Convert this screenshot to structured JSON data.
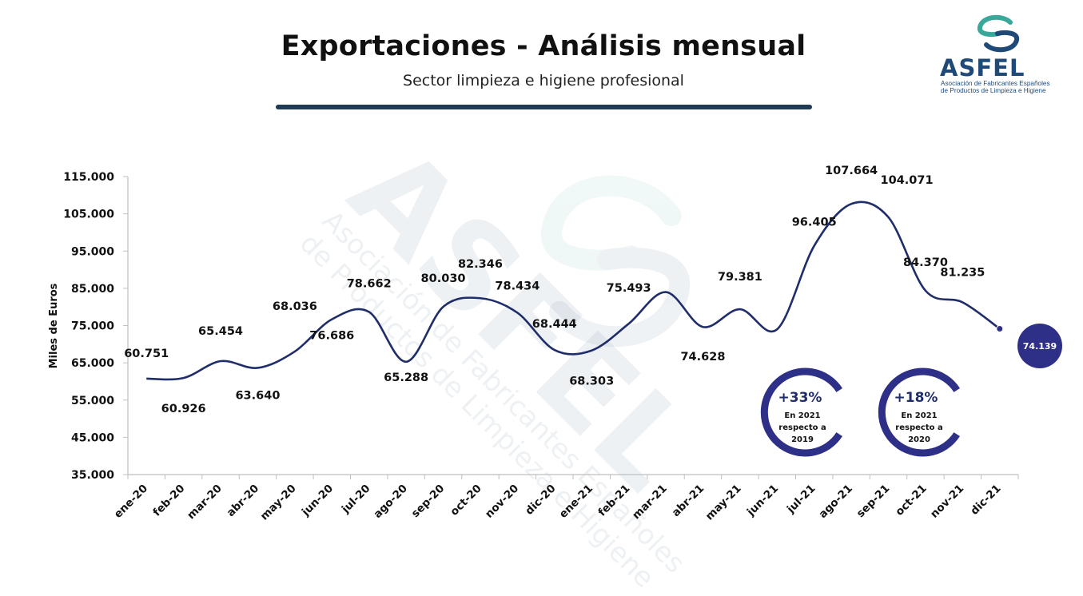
{
  "header": {
    "title": "Exportaciones - Análisis mensual",
    "subtitle": "Sector limpieza e higiene profesional"
  },
  "logo": {
    "name": "ASFEL",
    "line1": "Asociación de Fabricantes Españoles",
    "line2": "de Productos de Limpieza e Higiene",
    "color": "#1f4a78",
    "accent": "#3aa79b"
  },
  "watermark": {
    "name": "ASFEL",
    "line1": "Asociación de Fabricantes Españoles",
    "line2": "de Productos de Limpieza e Higiene"
  },
  "badges": [
    {
      "percent": "+33%",
      "line1": "En 2021",
      "line2": "respecto a",
      "line3": "2019"
    },
    {
      "percent": "+18%",
      "line1": "En  2021",
      "line2": "respecto a",
      "line3": "2020"
    }
  ],
  "chart_data": {
    "type": "line",
    "ylabel": "Miles de Euros",
    "ylim": [
      35000,
      115000
    ],
    "yticks": [
      35000,
      45000,
      55000,
      65000,
      75000,
      85000,
      95000,
      105000,
      115000
    ],
    "ytick_labels": [
      "35.000",
      "45.000",
      "55.000",
      "65.000",
      "75.000",
      "85.000",
      "95.000",
      "105.000",
      "115.000"
    ],
    "categories": [
      "ene-20",
      "feb-20",
      "mar-20",
      "abr-20",
      "may-20",
      "jun-20",
      "jul-20",
      "ago-20",
      "sep-20",
      "oct-20",
      "nov-20",
      "dic-20",
      "ene-21",
      "feb-21",
      "mar-21",
      "abr-21",
      "may-21",
      "jun-21",
      "jul-21",
      "ago-21",
      "sep-21",
      "oct-21",
      "nov-21",
      "dic-21"
    ],
    "values": [
      60751,
      60926,
      65454,
      63640,
      68036,
      76686,
      78662,
      65288,
      80030,
      82346,
      78434,
      68444,
      68303,
      75493,
      84000,
      74628,
      79381,
      74000,
      96405,
      107664,
      104071,
      84370,
      81235,
      74139
    ],
    "data_labels": [
      "60.751",
      "60.926",
      "65.454",
      "63.640",
      "68.036",
      "76.686",
      "78.662",
      "65.288",
      "80.030",
      "82.346",
      "78.434",
      "68.444",
      "68.303",
      "75.493",
      "",
      "74.628",
      "79.381",
      "",
      "96.405",
      "107.664",
      "104.071",
      "84.370",
      "81.235",
      "74.139"
    ],
    "grid": false,
    "line_color": "#1f2d6b",
    "highlight_color": "#2e2f86"
  }
}
